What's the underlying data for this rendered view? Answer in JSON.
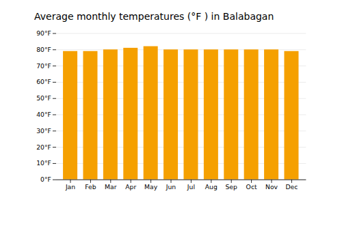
{
  "chart_data": {
    "type": "bar",
    "title": "Average monthly temperatures (°F ) in Balabagan",
    "categories": [
      "Jan",
      "Feb",
      "Mar",
      "Apr",
      "May",
      "Jun",
      "Jul",
      "Aug",
      "Sep",
      "Oct",
      "Nov",
      "Dec"
    ],
    "values": [
      79,
      79,
      80,
      81,
      82,
      80,
      80,
      80,
      80,
      80,
      80,
      79
    ],
    "color": "#F5A000",
    "ylim": [
      0,
      90
    ],
    "yticks": [
      {
        "value": 0,
        "label": "0°F"
      },
      {
        "value": 10,
        "label": "10°F"
      },
      {
        "value": 20,
        "label": "20°F"
      },
      {
        "value": 30,
        "label": "30°F"
      },
      {
        "value": 40,
        "label": "40°F"
      },
      {
        "value": 50,
        "label": "50°F"
      },
      {
        "value": 60,
        "label": "60°F"
      },
      {
        "value": 70,
        "label": "70°F"
      },
      {
        "value": 80,
        "label": "80°F"
      },
      {
        "value": 90,
        "label": "90°F"
      }
    ],
    "grid": true
  }
}
